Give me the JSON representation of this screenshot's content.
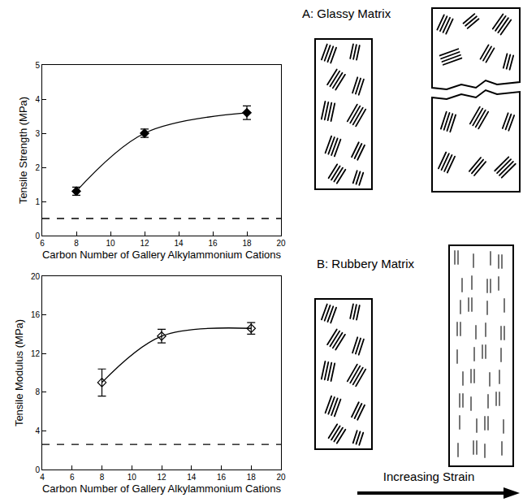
{
  "chart_data": [
    {
      "type": "scatter",
      "x_label": "Carbon Number of Gallery Alkylammonium Cations",
      "y_label": "Tensile Strength (MPa)",
      "xlim": [
        6,
        20
      ],
      "xticks": [
        6,
        8,
        10,
        12,
        14,
        16,
        18,
        20
      ],
      "ylim": [
        0,
        5
      ],
      "yticks": [
        0,
        1,
        2,
        3,
        4,
        5
      ],
      "grid": false,
      "series": [
        {
          "x": [
            8,
            12,
            18
          ],
          "values": [
            1.3,
            3.0,
            3.6
          ],
          "error": [
            0.12,
            0.12,
            0.2
          ],
          "color": "#000000",
          "marker": "diamond",
          "line_style": "smooth"
        },
        {
          "x": [
            6,
            20
          ],
          "values": [
            0.5,
            0.5
          ],
          "color": "#000000",
          "line_style": "dashed"
        }
      ]
    },
    {
      "type": "scatter",
      "x_label": "Carbon Number of Gallery Alkylammonium Cations",
      "y_label": "Tensile Modulus (MPa)",
      "xlim": [
        4,
        20
      ],
      "xticks": [
        4,
        6,
        8,
        10,
        12,
        14,
        16,
        18,
        20
      ],
      "ylim": [
        0,
        20
      ],
      "yticks": [
        0,
        4,
        8,
        12,
        16,
        20
      ],
      "grid": false,
      "series": [
        {
          "x": [
            8,
            12,
            18
          ],
          "values": [
            9.0,
            13.8,
            14.6
          ],
          "error": [
            1.4,
            0.7,
            0.6
          ],
          "color": "#000000",
          "marker": "diamond-open",
          "line_style": "smooth"
        },
        {
          "x": [
            4,
            20
          ],
          "values": [
            2.6,
            2.6
          ],
          "color": "#000000",
          "line_style": "dashed"
        }
      ]
    }
  ],
  "diagram": {
    "panels": [
      {
        "label": "A: Glassy Matrix"
      },
      {
        "label": "B: Rubbery Matrix"
      }
    ],
    "arrow_label": "Increasing Strain"
  }
}
